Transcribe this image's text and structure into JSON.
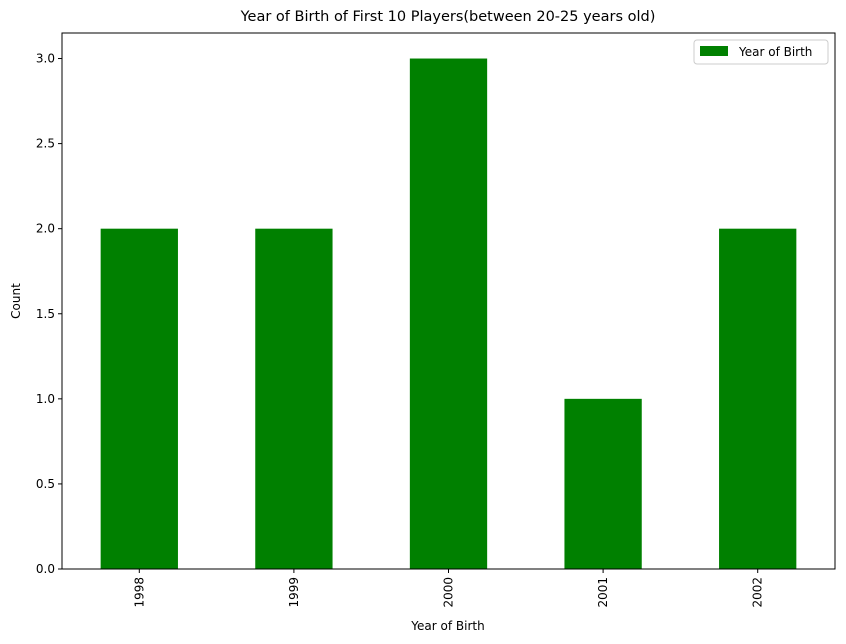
{
  "chart_data": {
    "type": "bar",
    "title": "Year of Birth of First 10 Players(between 20-25 years old)",
    "xlabel": "Year of Birth",
    "ylabel": "Count",
    "categories": [
      "1998",
      "1999",
      "2000",
      "2001",
      "2002"
    ],
    "series": [
      {
        "name": "Year of Birth",
        "values": [
          2,
          2,
          3,
          1,
          2
        ]
      }
    ],
    "ylim": [
      0,
      3.15
    ],
    "yticks": [
      "0.0",
      "0.5",
      "1.0",
      "1.5",
      "2.0",
      "2.5",
      "3.0"
    ],
    "bar_color": "#008000",
    "grid": false,
    "legend_position": "top-right",
    "xtick_rotation": "vertical"
  }
}
